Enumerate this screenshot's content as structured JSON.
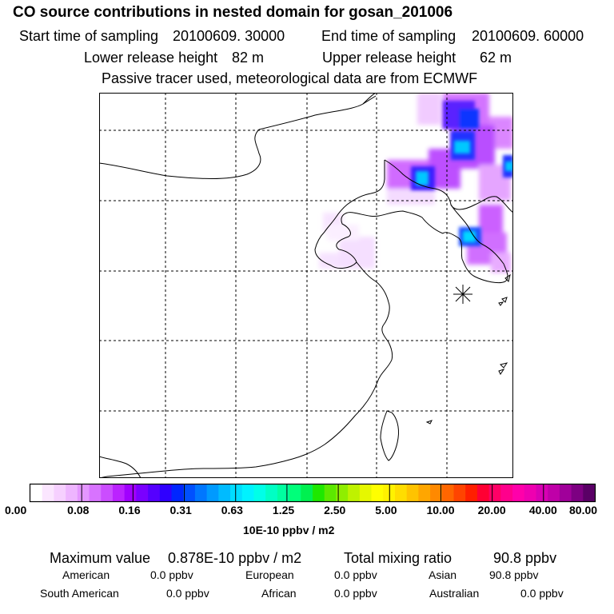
{
  "title": "CO  source contributions in nested domain for gosan_201006",
  "header": {
    "start_label": "Start time of sampling",
    "start_value": "20100609. 30000",
    "end_label": "End time of sampling",
    "end_value": "20100609. 60000",
    "lower_label": "Lower release height",
    "lower_value": "82 m",
    "upper_label": "Upper release height",
    "upper_value": "62 m",
    "note": "Passive tracer used, meteorological data are from ECMWF"
  },
  "legend": {
    "ticks": [
      "0.00",
      "0.08",
      "0.16",
      "0.31",
      "0.63",
      "1.25",
      "2.50",
      "5.00",
      "10.00",
      "20.00",
      "40.00",
      "80.00"
    ],
    "unit": "10E-10 ppbv / m2",
    "colors": [
      "#ffffff",
      "#fbe6ff",
      "#f6d0ff",
      "#eeb5ff",
      "#e496ff",
      "#d873ff",
      "#cb4dff",
      "#bb22ff",
      "#a100ff",
      "#7a00ff",
      "#5500ff",
      "#2f00ff",
      "#0026ff",
      "#0050ff",
      "#0077ff",
      "#009aff",
      "#00bbff",
      "#00ddff",
      "#00f2ff",
      "#00ffe8",
      "#00ffc4",
      "#00ffa0",
      "#00ff7a",
      "#00f050",
      "#1ee800",
      "#5ce800",
      "#8fee00",
      "#bff200",
      "#e6f700",
      "#ffff00",
      "#fff200",
      "#ffdd00",
      "#ffc300",
      "#ffa600",
      "#ff8900",
      "#ff6600",
      "#ff4400",
      "#ff1f00",
      "#ff0033",
      "#ff0066",
      "#ff008c",
      "#ff00aa",
      "#ee00b0",
      "#d800b4",
      "#bf00a8",
      "#a0009a",
      "#7d0082",
      "#5a0066"
    ]
  },
  "stats": {
    "max_label": "Maximum value",
    "max_value": "0.878E-10 ppbv / m2",
    "total_label": "Total mixing ratio",
    "total_value": "90.8 ppbv",
    "american_label": "American",
    "american_value": "0.0 ppbv",
    "european_label": "European",
    "european_value": "0.0 ppbv",
    "asian_label": "Asian",
    "asian_value": "90.8 ppbv",
    "south_american_label": "South American",
    "south_american_value": "0.0 ppbv",
    "african_label": "African",
    "african_value": "0.0 ppbv",
    "australian_label": "Australian",
    "australian_value": "0.0 ppbv"
  }
}
